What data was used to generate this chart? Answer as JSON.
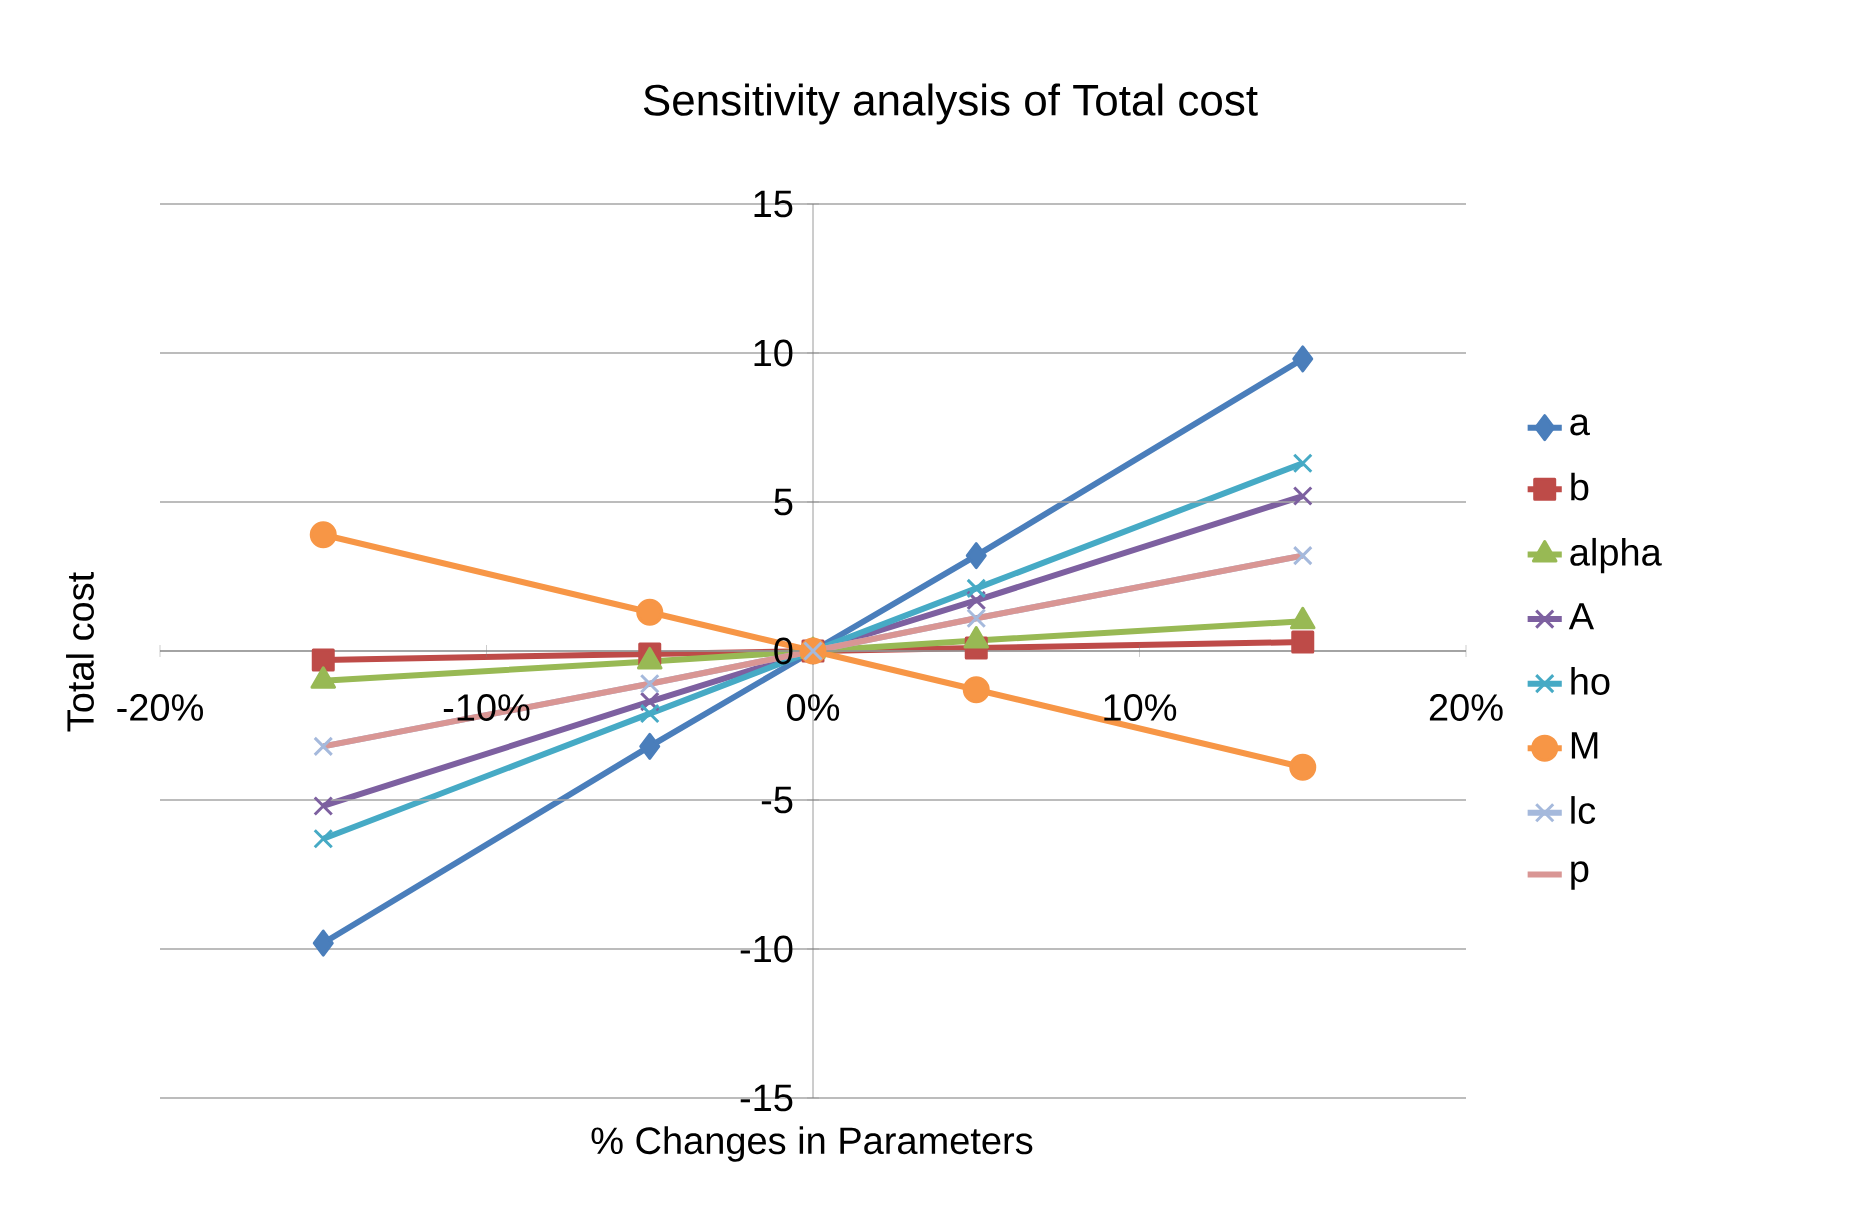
{
  "chart_data": {
    "type": "line",
    "title": "Sensitivity analysis of Total cost",
    "xlabel": "% Changes in Parameters",
    "ylabel": "Total cost",
    "x": [
      -15,
      -5,
      0,
      5,
      15
    ],
    "xlim": [
      -20,
      20
    ],
    "xticks": [
      {
        "value": -20,
        "label": "-20%"
      },
      {
        "value": -10,
        "label": "-10%"
      },
      {
        "value": 0,
        "label": "0%"
      },
      {
        "value": 10,
        "label": "10%"
      },
      {
        "value": 20,
        "label": "20%"
      }
    ],
    "ylim": [
      -15,
      15
    ],
    "yticks": [
      -15,
      -10,
      -5,
      0,
      5,
      10,
      15
    ],
    "grid": "y",
    "legend": "right",
    "series": [
      {
        "name": "a",
        "color": "#4a7ebb",
        "marker": "diamond",
        "values": [
          -9.8,
          -3.2,
          0,
          3.2,
          9.8
        ]
      },
      {
        "name": "b",
        "color": "#be4b48",
        "marker": "square",
        "values": [
          -0.3,
          -0.1,
          0,
          0.1,
          0.3
        ]
      },
      {
        "name": "alpha",
        "color": "#98b954",
        "marker": "triangle",
        "values": [
          -1.0,
          -0.35,
          0,
          0.35,
          1.0
        ]
      },
      {
        "name": "A",
        "color": "#7d60a0",
        "marker": "cross",
        "values": [
          -5.2,
          -1.7,
          0,
          1.7,
          5.2
        ]
      },
      {
        "name": "ho",
        "color": "#46aac5",
        "marker": "cross",
        "values": [
          -6.3,
          -2.1,
          0,
          2.1,
          6.3
        ]
      },
      {
        "name": "M",
        "color": "#f79646",
        "marker": "circle",
        "values": [
          3.9,
          1.3,
          0,
          -1.3,
          -3.9
        ]
      },
      {
        "name": "lc",
        "color": "#a5b9dc",
        "marker": "cross",
        "values": [
          -3.2,
          -1.1,
          0,
          1.1,
          3.2
        ]
      },
      {
        "name": "p",
        "color": "#d99694",
        "marker": "none",
        "values": [
          -3.2,
          -1.1,
          0,
          1.1,
          3.2
        ]
      }
    ]
  }
}
